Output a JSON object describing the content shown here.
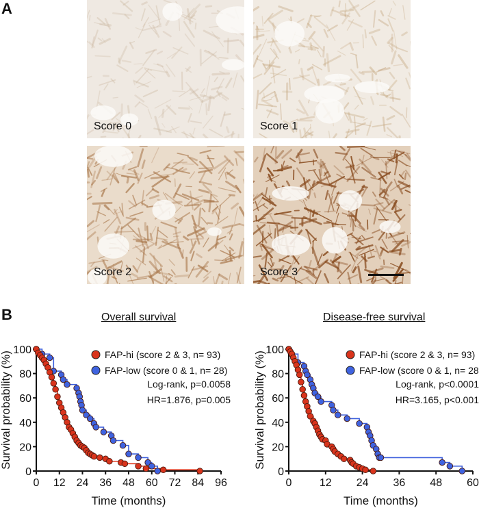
{
  "panels": {
    "a_label": "A",
    "b_label": "B"
  },
  "micrographs": [
    {
      "label": "Score 0",
      "stain": "#c9b49c",
      "bg": "#efe9e2",
      "intensity": 0.15
    },
    {
      "label": "Score 1",
      "stain": "#c4a67f",
      "bg": "#f1ebe3",
      "intensity": 0.25
    },
    {
      "label": "Score 2",
      "stain": "#a8764a",
      "bg": "#eadccb",
      "intensity": 0.55
    },
    {
      "label": "Score 3",
      "stain": "#8a4e22",
      "bg": "#e3d0bb",
      "intensity": 0.85
    }
  ],
  "colors": {
    "fap_hi": "#d9341c",
    "fap_hi_line": "#e0381e",
    "fap_low": "#3f63e0",
    "fap_low_line": "#3c5fdc",
    "axis": "#111111"
  },
  "chart_data": [
    {
      "type": "line",
      "subtype": "kaplan-meier",
      "title": "Overall survival",
      "xlabel": "Time (months)",
      "ylabel": "Survival probability (%)",
      "xlim": [
        0,
        96
      ],
      "ylim": [
        0,
        100
      ],
      "xticks": [
        0,
        12,
        24,
        36,
        48,
        60,
        72,
        84,
        96
      ],
      "yticks": [
        0,
        20,
        40,
        60,
        80,
        100
      ],
      "grid": false,
      "legend_position": "top-right",
      "annotations": [
        "Log-rank, p=0.0058",
        "HR=1.876, p=0.005"
      ],
      "series": [
        {
          "name": "FAP-hi (score 2 & 3, n= 93)",
          "color": "#d9341c",
          "x": [
            0,
            1,
            2,
            3,
            4,
            5,
            6,
            7,
            8,
            9,
            10,
            11,
            12,
            13,
            14,
            15,
            16,
            17,
            18,
            19,
            20,
            21,
            22,
            23,
            24,
            25,
            26,
            27,
            28,
            29,
            30,
            33,
            36,
            38,
            44,
            46,
            53,
            57,
            66,
            85
          ],
          "y": [
            100,
            97,
            95,
            93,
            91,
            88,
            85,
            81,
            77,
            72,
            67,
            61,
            56,
            52,
            48,
            44,
            40,
            36,
            34,
            31,
            28,
            25,
            23,
            21,
            20,
            19,
            17,
            15,
            14,
            13,
            12,
            11,
            10,
            8,
            7,
            6,
            4,
            2,
            1,
            0
          ]
        },
        {
          "name": "FAP-low (score 0 & 1, n= 28)",
          "color": "#3f63e0",
          "x": [
            0,
            3,
            7,
            9,
            13,
            14,
            16,
            21,
            22,
            22.5,
            23,
            23.5,
            24,
            26,
            28,
            30,
            31,
            35,
            39,
            40,
            45,
            48,
            53,
            58,
            60,
            63
          ],
          "y": [
            100,
            96,
            93,
            82,
            79,
            75,
            71,
            68,
            64,
            61,
            57,
            54,
            50,
            46,
            43,
            39,
            36,
            32,
            29,
            25,
            21,
            14,
            11,
            7,
            4,
            0
          ]
        }
      ]
    },
    {
      "type": "line",
      "subtype": "kaplan-meier",
      "title": "Disease-free survival",
      "xlabel": "Time (months)",
      "ylabel": "Survival probability (%)",
      "xlim": [
        0,
        60
      ],
      "ylim": [
        0,
        100
      ],
      "xticks": [
        0,
        12,
        24,
        36,
        48,
        60
      ],
      "yticks": [
        0,
        20,
        40,
        60,
        80,
        100
      ],
      "grid": false,
      "legend_position": "top-right",
      "annotations": [
        "Log-rank, p<0.0001",
        "HR=3.165, p<0.001"
      ],
      "series": [
        {
          "name": "FAP-hi (score 2 & 3, n= 93)",
          "color": "#d9341c",
          "x": [
            0,
            0.5,
            1,
            1.5,
            2,
            2.5,
            3,
            3.5,
            4,
            4.5,
            5,
            5.5,
            6,
            6.5,
            7,
            8,
            8.5,
            9,
            9.5,
            10,
            10.5,
            11,
            12,
            12.5,
            14,
            14.5,
            15,
            16,
            17,
            18,
            20,
            20.5,
            21,
            22,
            23,
            24,
            25,
            27.5
          ],
          "y": [
            100,
            98,
            96,
            93,
            90,
            87,
            83,
            79,
            73,
            67,
            62,
            57,
            53,
            49,
            45,
            41,
            39,
            36,
            33,
            30,
            28,
            26,
            25,
            22,
            20,
            18,
            16,
            14,
            12,
            10,
            9,
            7,
            6,
            4,
            3,
            2,
            1,
            0
          ]
        },
        {
          "name": "FAP-low (score 0 & 1, n= 28)",
          "color": "#3f63e0",
          "x": [
            0,
            1,
            3,
            5,
            5.5,
            6,
            7,
            7.5,
            8,
            8.5,
            9.5,
            10.5,
            14,
            14.5,
            16,
            19,
            23,
            25.5,
            26,
            26.5,
            27,
            27.5,
            28.5,
            29,
            29.5,
            30,
            50,
            52.5,
            56.5
          ],
          "y": [
            100,
            96,
            89,
            86,
            82,
            79,
            75,
            71,
            68,
            64,
            61,
            57,
            54,
            50,
            46,
            43,
            39,
            36,
            32,
            29,
            25,
            21,
            18,
            14,
            11,
            11,
            7,
            4,
            0
          ]
        }
      ]
    }
  ]
}
